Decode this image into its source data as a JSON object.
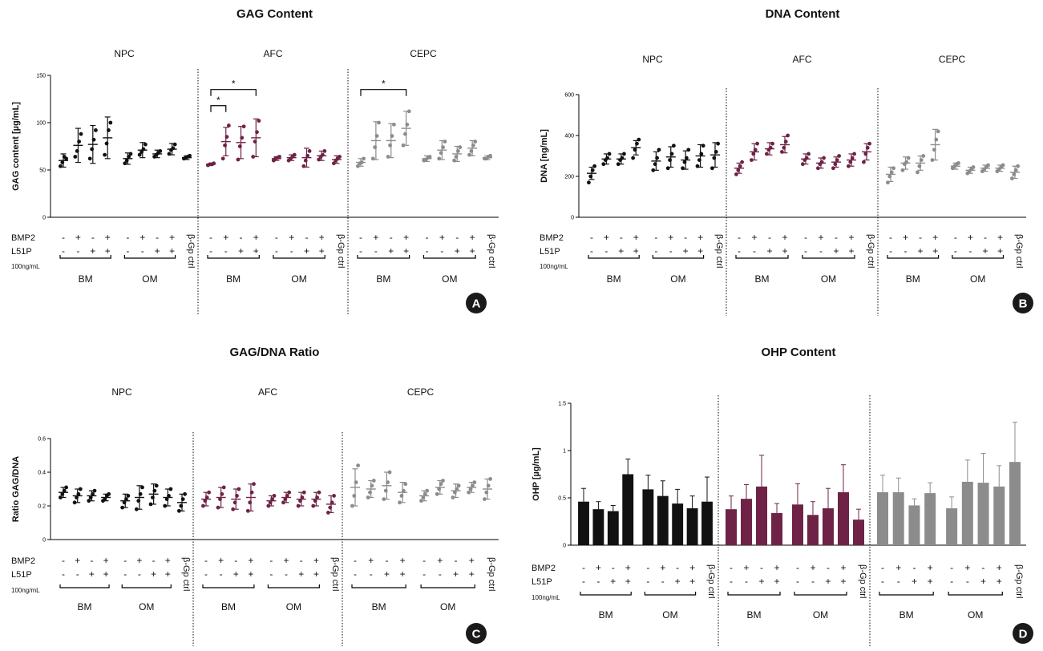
{
  "panels": [
    {
      "id": "A",
      "badge": "A",
      "title": "GAG Content",
      "ylabel": "GAG content [µg/mL]",
      "ylim": [
        0,
        150
      ],
      "yticks": [
        0,
        50,
        100,
        150
      ],
      "style": "dot"
    },
    {
      "id": "B",
      "badge": "B",
      "title": "DNA Content",
      "ylabel": "DNA [ng/mL]",
      "ylim": [
        0,
        600
      ],
      "yticks": [
        0,
        200,
        400,
        600
      ],
      "style": "dot"
    },
    {
      "id": "C",
      "badge": "C",
      "title": "GAG/DNA Ratio",
      "ylabel": "Ratio GAG/DNA",
      "ylim": [
        0,
        0.6
      ],
      "yticks": [
        0.0,
        0.2,
        0.4,
        0.6
      ],
      "style": "dot"
    },
    {
      "id": "D",
      "badge": "D",
      "title": "OHP Content",
      "ylabel": "OHP [µg/mL]",
      "ylim": [
        0,
        1.5
      ],
      "yticks": [
        0.0,
        0.5,
        1.0,
        1.5
      ],
      "style": "bar"
    }
  ],
  "groups": [
    "NPC",
    "AFC",
    "CEPC"
  ],
  "group_colors": [
    "#111111",
    "#6e2346",
    "#8c8c8c"
  ],
  "row_labels": {
    "bmp2": "BMP2",
    "l51p": "L51P",
    "conc": "100ng/mL"
  },
  "bmp2_signs": [
    "-",
    "+",
    "-",
    "+",
    "-",
    "+",
    "-",
    "+"
  ],
  "l51p_signs": [
    "-",
    "-",
    "+",
    "+",
    "-",
    "-",
    "+",
    "+"
  ],
  "medium_labels": [
    "BM",
    "OM"
  ],
  "ctrl_label": "β-Gp ctrl",
  "significance_marker": "*",
  "chart_data": [
    {
      "type": "scatter",
      "title": "GAG Content",
      "ylabel": "GAG content [µg/mL]",
      "ylim": [
        0,
        150
      ],
      "series": [
        {
          "name": "NPC",
          "mean": [
            60,
            76,
            77,
            84,
            62,
            71,
            67,
            72,
            63
          ],
          "sd": [
            7,
            18,
            20,
            22,
            6,
            8,
            4,
            6,
            2
          ],
          "points": [
            [
              54,
              58,
              64,
              62
            ],
            [
              64,
              70,
              80,
              88
            ],
            [
              62,
              72,
              82,
              92
            ],
            [
              66,
              78,
              92,
              100
            ],
            [
              57,
              60,
              64,
              67
            ],
            [
              66,
              69,
              72,
              77
            ],
            [
              64,
              66,
              68,
              70
            ],
            [
              67,
              71,
              73,
              77
            ],
            [
              62,
              63,
              64,
              65
            ]
          ]
        },
        {
          "name": "AFC",
          "mean": [
            56,
            80,
            79,
            84,
            62,
            63,
            63,
            65,
            61
          ],
          "sd": [
            1,
            15,
            17,
            20,
            2,
            3,
            10,
            5,
            4
          ],
          "points": [
            [
              55,
              56,
              56,
              57
            ],
            [
              62,
              76,
              85,
              97
            ],
            [
              61,
              75,
              84,
              96
            ],
            [
              64,
              80,
              90,
              102
            ],
            [
              60,
              62,
              63,
              64
            ],
            [
              60,
              62,
              64,
              66
            ],
            [
              54,
              60,
              65,
              70
            ],
            [
              61,
              64,
              66,
              70
            ],
            [
              57,
              60,
              62,
              64
            ]
          ]
        },
        {
          "name": "CEPC",
          "mean": [
            58,
            81,
            81,
            94,
            62,
            71,
            67,
            73,
            63
          ],
          "sd": [
            4,
            20,
            18,
            18,
            3,
            10,
            8,
            8,
            2
          ],
          "points": [
            [
              54,
              57,
              58,
              62
            ],
            [
              62,
              74,
              86,
              100
            ],
            [
              64,
              76,
              86,
              98
            ],
            [
              76,
              88,
              98,
              112
            ],
            [
              60,
              61,
              63,
              64
            ],
            [
              62,
              68,
              74,
              80
            ],
            [
              60,
              64,
              70,
              74
            ],
            [
              66,
              70,
              76,
              80
            ],
            [
              62,
              62,
              64,
              65
            ]
          ]
        }
      ],
      "significance": [
        {
          "group": 1,
          "from": 0,
          "to": 1,
          "y": 118
        },
        {
          "group": 1,
          "from": 0,
          "to": 3,
          "y": 135
        },
        {
          "group": 2,
          "from": 0,
          "to": 3,
          "y": 135
        }
      ]
    },
    {
      "type": "scatter",
      "title": "DNA Content",
      "ylabel": "DNA [ng/mL]",
      "ylim": [
        0,
        600
      ],
      "series": [
        {
          "name": "NPC",
          "mean": [
            215,
            285,
            285,
            340,
            275,
            295,
            280,
            300,
            305
          ],
          "sd": [
            30,
            25,
            25,
            35,
            45,
            50,
            45,
            55,
            60
          ],
          "points": [
            [
              170,
              200,
              230,
              250
            ],
            [
              260,
              280,
              290,
              310
            ],
            [
              260,
              280,
              290,
              310
            ],
            [
              290,
              330,
              360,
              380
            ],
            [
              230,
              260,
              290,
              330
            ],
            [
              240,
              280,
              310,
              350
            ],
            [
              240,
              270,
              290,
              330
            ],
            [
              250,
              280,
              310,
              350
            ],
            [
              240,
              290,
              320,
              360
            ]
          ]
        },
        {
          "name": "AFC",
          "mean": [
            240,
            320,
            335,
            355,
            285,
            265,
            270,
            280,
            320
          ],
          "sd": [
            25,
            40,
            30,
            40,
            25,
            25,
            25,
            30,
            40
          ],
          "points": [
            [
              210,
              230,
              250,
              270
            ],
            [
              280,
              310,
              330,
              360
            ],
            [
              310,
              330,
              340,
              360
            ],
            [
              320,
              340,
              370,
              400
            ],
            [
              260,
              280,
              290,
              310
            ],
            [
              240,
              260,
              270,
              290
            ],
            [
              240,
              260,
              280,
              300
            ],
            [
              250,
              270,
              290,
              310
            ],
            [
              270,
              310,
              340,
              360
            ]
          ]
        },
        {
          "name": "CEPC",
          "mean": [
            210,
            265,
            265,
            355,
            250,
            230,
            240,
            240,
            220
          ],
          "sd": [
            35,
            30,
            35,
            75,
            15,
            15,
            15,
            15,
            30
          ],
          "points": [
            [
              170,
              200,
              220,
              240
            ],
            [
              230,
              260,
              270,
              290
            ],
            [
              220,
              250,
              280,
              300
            ],
            [
              280,
              330,
              380,
              420
            ],
            [
              240,
              250,
              260,
              265
            ],
            [
              215,
              225,
              235,
              245
            ],
            [
              225,
              235,
              245,
              255
            ],
            [
              225,
              235,
              245,
              255
            ],
            [
              190,
              210,
              230,
              250
            ]
          ]
        }
      ]
    },
    {
      "type": "scatter",
      "title": "GAG/DNA Ratio",
      "ylabel": "Ratio GAG/DNA",
      "ylim": [
        0,
        0.6
      ],
      "series": [
        {
          "name": "NPC",
          "mean": [
            0.28,
            0.26,
            0.26,
            0.25,
            0.23,
            0.25,
            0.27,
            0.25,
            0.22
          ],
          "sd": [
            0.03,
            0.04,
            0.03,
            0.02,
            0.04,
            0.07,
            0.06,
            0.05,
            0.05
          ],
          "points": [
            [
              0.25,
              0.27,
              0.29,
              0.31
            ],
            [
              0.22,
              0.25,
              0.27,
              0.3
            ],
            [
              0.23,
              0.25,
              0.27,
              0.29
            ],
            [
              0.23,
              0.24,
              0.26,
              0.27
            ],
            [
              0.19,
              0.22,
              0.24,
              0.26
            ],
            [
              0.18,
              0.23,
              0.27,
              0.31
            ],
            [
              0.21,
              0.25,
              0.29,
              0.32
            ],
            [
              0.2,
              0.24,
              0.26,
              0.3
            ],
            [
              0.17,
              0.2,
              0.24,
              0.27
            ]
          ]
        },
        {
          "name": "AFC",
          "mean": [
            0.24,
            0.25,
            0.24,
            0.25,
            0.23,
            0.25,
            0.24,
            0.24,
            0.21
          ],
          "sd": [
            0.04,
            0.06,
            0.06,
            0.08,
            0.03,
            0.03,
            0.04,
            0.04,
            0.05
          ],
          "points": [
            [
              0.2,
              0.23,
              0.25,
              0.28
            ],
            [
              0.19,
              0.24,
              0.27,
              0.31
            ],
            [
              0.18,
              0.22,
              0.26,
              0.3
            ],
            [
              0.17,
              0.22,
              0.28,
              0.33
            ],
            [
              0.2,
              0.22,
              0.24,
              0.26
            ],
            [
              0.22,
              0.24,
              0.26,
              0.28
            ],
            [
              0.2,
              0.23,
              0.25,
              0.28
            ],
            [
              0.2,
              0.23,
              0.25,
              0.28
            ],
            [
              0.16,
              0.19,
              0.22,
              0.26
            ]
          ]
        },
        {
          "name": "CEPC",
          "mean": [
            0.31,
            0.3,
            0.32,
            0.28,
            0.26,
            0.31,
            0.29,
            0.31,
            0.3
          ],
          "sd": [
            0.11,
            0.05,
            0.08,
            0.06,
            0.03,
            0.04,
            0.04,
            0.03,
            0.06
          ],
          "points": [
            [
              0.2,
              0.26,
              0.34,
              0.44
            ],
            [
              0.25,
              0.28,
              0.32,
              0.35
            ],
            [
              0.24,
              0.29,
              0.34,
              0.4
            ],
            [
              0.22,
              0.26,
              0.29,
              0.33
            ],
            [
              0.23,
              0.25,
              0.27,
              0.29
            ],
            [
              0.27,
              0.3,
              0.33,
              0.35
            ],
            [
              0.25,
              0.28,
              0.3,
              0.32
            ],
            [
              0.28,
              0.3,
              0.32,
              0.34
            ],
            [
              0.24,
              0.28,
              0.32,
              0.36
            ]
          ]
        }
      ]
    },
    {
      "type": "bar",
      "title": "OHP Content",
      "ylabel": "OHP [µg/mL]",
      "ylim": [
        0,
        1.5
      ],
      "series": [
        {
          "name": "NPC",
          "values": [
            0.46,
            0.38,
            0.36,
            0.75,
            0.59,
            0.52,
            0.44,
            0.39,
            0.46
          ],
          "error": [
            0.14,
            0.08,
            0.06,
            0.16,
            0.15,
            0.16,
            0.15,
            0.13,
            0.26
          ]
        },
        {
          "name": "AFC",
          "values": [
            0.38,
            0.49,
            0.62,
            0.34,
            0.43,
            0.32,
            0.39,
            0.56,
            0.27
          ],
          "error": [
            0.14,
            0.15,
            0.33,
            0.1,
            0.22,
            0.14,
            0.21,
            0.29,
            0.11
          ]
        },
        {
          "name": "CEPC",
          "values": [
            0.56,
            0.56,
            0.42,
            0.55,
            0.39,
            0.67,
            0.66,
            0.62,
            0.88
          ],
          "error": [
            0.18,
            0.15,
            0.07,
            0.11,
            0.12,
            0.23,
            0.31,
            0.22,
            0.42
          ]
        }
      ]
    }
  ]
}
